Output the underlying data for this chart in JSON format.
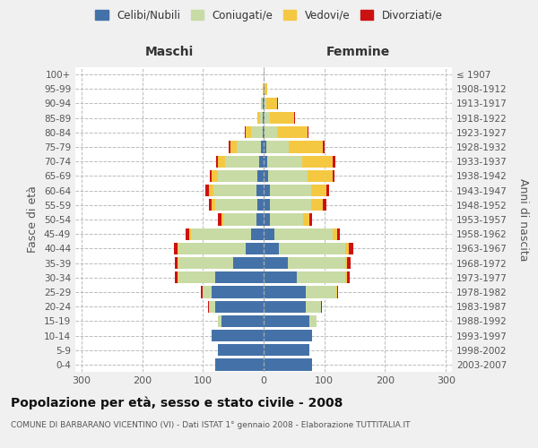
{
  "age_groups": [
    "0-4",
    "5-9",
    "10-14",
    "15-19",
    "20-24",
    "25-29",
    "30-34",
    "35-39",
    "40-44",
    "45-49",
    "50-54",
    "55-59",
    "60-64",
    "65-69",
    "70-74",
    "75-79",
    "80-84",
    "85-89",
    "90-94",
    "95-99",
    "100+"
  ],
  "birth_years": [
    "2003-2007",
    "1998-2002",
    "1993-1997",
    "1988-1992",
    "1983-1987",
    "1978-1982",
    "1973-1977",
    "1968-1972",
    "1963-1967",
    "1958-1962",
    "1953-1957",
    "1948-1952",
    "1943-1947",
    "1938-1942",
    "1933-1937",
    "1928-1932",
    "1923-1927",
    "1918-1922",
    "1913-1917",
    "1908-1912",
    "≤ 1907"
  ],
  "males": {
    "celibi": [
      80,
      75,
      85,
      70,
      80,
      85,
      80,
      50,
      30,
      20,
      12,
      10,
      12,
      10,
      8,
      4,
      2,
      1,
      1,
      0,
      0
    ],
    "coniugati": [
      0,
      0,
      0,
      5,
      10,
      15,
      60,
      90,
      110,
      100,
      55,
      70,
      70,
      65,
      55,
      40,
      18,
      5,
      2,
      0,
      0
    ],
    "vedovi": [
      0,
      0,
      0,
      0,
      0,
      1,
      1,
      2,
      2,
      3,
      3,
      5,
      8,
      10,
      12,
      10,
      10,
      5,
      2,
      1,
      0
    ],
    "divorziati": [
      0,
      0,
      0,
      0,
      1,
      2,
      5,
      4,
      6,
      5,
      5,
      5,
      6,
      4,
      3,
      3,
      1,
      0,
      0,
      0,
      0
    ]
  },
  "females": {
    "nubili": [
      80,
      75,
      80,
      75,
      70,
      70,
      55,
      40,
      25,
      18,
      10,
      10,
      10,
      8,
      6,
      4,
      2,
      2,
      2,
      1,
      0
    ],
    "coniugate": [
      0,
      0,
      0,
      12,
      25,
      50,
      80,
      95,
      110,
      95,
      55,
      68,
      68,
      65,
      58,
      38,
      20,
      8,
      2,
      1,
      0
    ],
    "vedove": [
      0,
      0,
      0,
      0,
      0,
      1,
      2,
      3,
      5,
      8,
      10,
      20,
      25,
      40,
      50,
      55,
      50,
      40,
      18,
      4,
      0
    ],
    "divorziate": [
      0,
      0,
      0,
      0,
      1,
      2,
      5,
      5,
      8,
      5,
      5,
      5,
      5,
      4,
      4,
      3,
      2,
      1,
      1,
      0,
      0
    ]
  },
  "colors": {
    "celibi": "#4472a8",
    "coniugati": "#c8dba4",
    "vedovi": "#f5c842",
    "divorziati": "#cc1111"
  },
  "legend_labels": [
    "Celibi/Nubili",
    "Coniugati/e",
    "Vedovi/e",
    "Divorziati/e"
  ],
  "title": "Popolazione per età, sesso e stato civile - 2008",
  "subtitle": "COMUNE DI BARBARANO VICENTINO (VI) - Dati ISTAT 1° gennaio 2008 - Elaborazione TUTTITALIA.IT",
  "xlabel_left": "Maschi",
  "xlabel_right": "Femmine",
  "ylabel_left": "Fasce di età",
  "ylabel_right": "Anni di nascita",
  "xlim": 310,
  "bg_color": "#f0f0f0",
  "plot_bg": "#ffffff",
  "grid_color": "#bbbbbb"
}
